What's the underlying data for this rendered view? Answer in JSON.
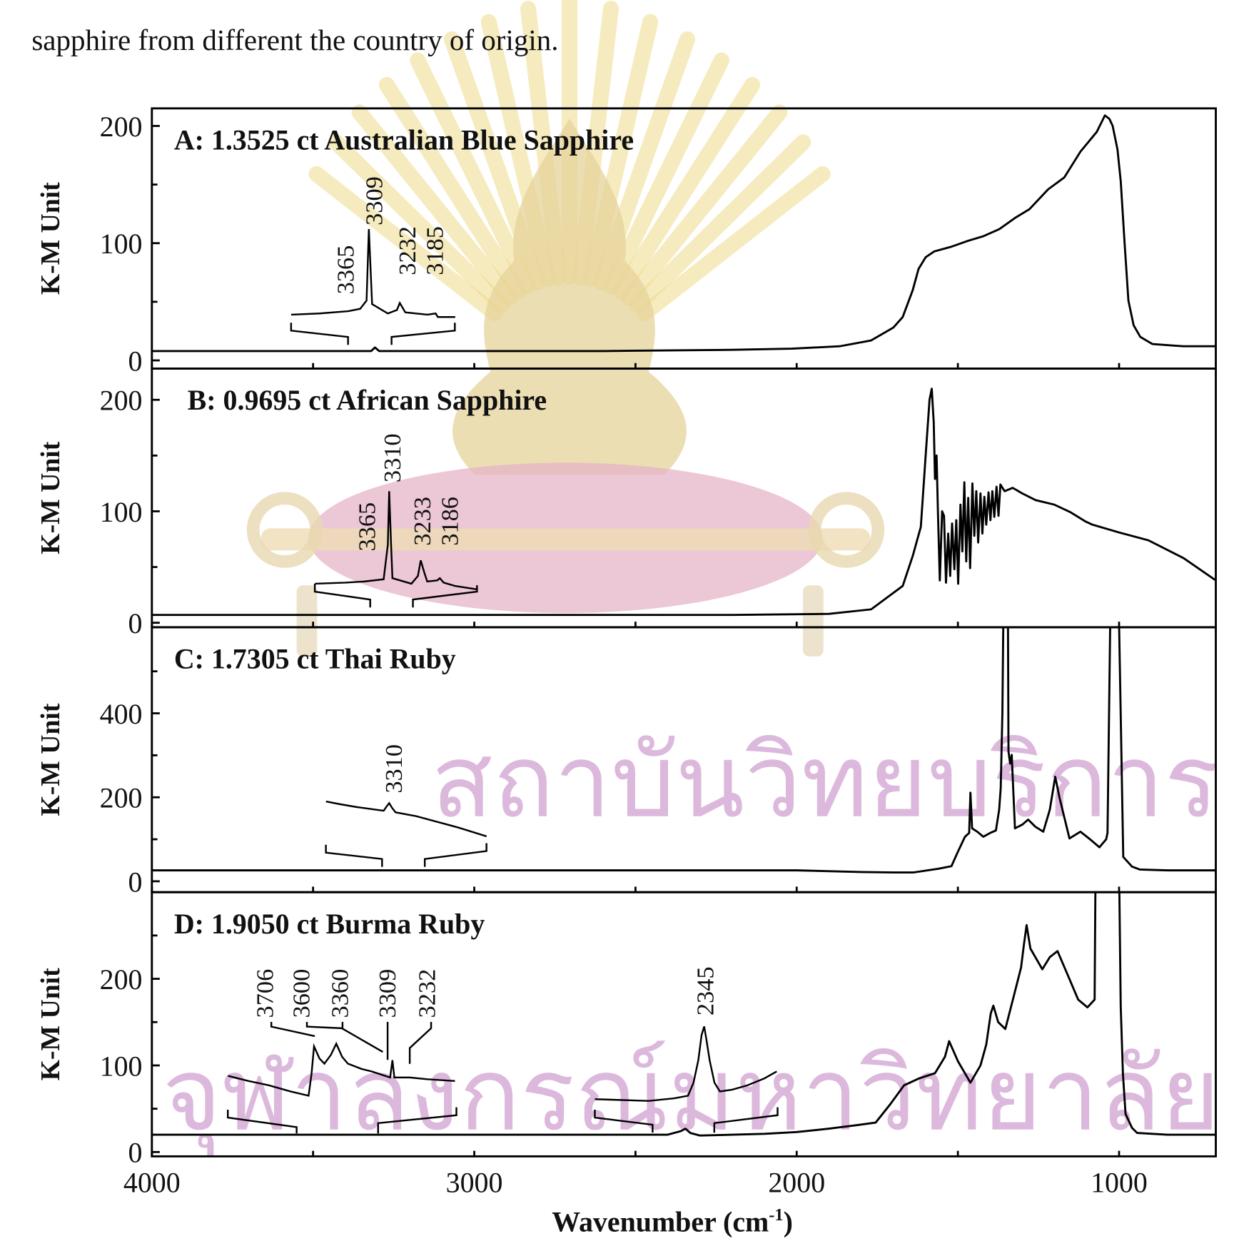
{
  "caption": "sapphire from different the country of origin.",
  "watermark": {
    "line1": "สถาบันวิทยบริการ",
    "line2": "จุฬาลงกรณ์มหาวิทยาลัย",
    "emblem_color": "#f0dc8c",
    "ribbon_color": "#e6b4c8",
    "text_color": "#d9b2d9"
  },
  "chart_data": {
    "type": "line",
    "xlabel": "Wavenumber (cm-1)",
    "xlabel_main": "Wavenumber (cm",
    "xlabel_sup": "-1",
    "xlabel_close": ")",
    "xlim": [
      4000,
      700
    ],
    "xticks": [
      4000,
      3000,
      2000,
      1000
    ],
    "xticks_minor": [
      3500,
      2500,
      1500
    ],
    "grid": false,
    "panels": [
      {
        "title": "A: 1.3525 ct Australian Blue Sapphire",
        "ylabel": "K-M Unit",
        "ylim": [
          -7,
          215
        ],
        "yticks": [
          0,
          100,
          200
        ],
        "yticks_minor": [
          50,
          150
        ],
        "annotations": [
          "3365",
          "3309",
          "3232",
          "3185"
        ],
        "series": [
          [
            4000,
            8
          ],
          [
            3400,
            8
          ],
          [
            3320,
            8
          ],
          [
            3308,
            11
          ],
          [
            3295,
            8
          ],
          [
            2600,
            8
          ],
          [
            2200,
            9
          ],
          [
            2015,
            10
          ],
          [
            1867,
            12
          ],
          [
            1769,
            17
          ],
          [
            1700,
            28
          ],
          [
            1671,
            37
          ],
          [
            1640,
            60
          ],
          [
            1622,
            78
          ],
          [
            1600,
            88
          ],
          [
            1573,
            93
          ],
          [
            1520,
            97
          ],
          [
            1469,
            102
          ],
          [
            1420,
            106
          ],
          [
            1371,
            112
          ],
          [
            1320,
            122
          ],
          [
            1278,
            129
          ],
          [
            1220,
            146
          ],
          [
            1170,
            156
          ],
          [
            1120,
            178
          ],
          [
            1069,
            195
          ],
          [
            1044,
            209
          ],
          [
            1030,
            206
          ],
          [
            1020,
            200
          ],
          [
            1005,
            180
          ],
          [
            995,
            153
          ],
          [
            983,
            100
          ],
          [
            971,
            51
          ],
          [
            955,
            30
          ],
          [
            934,
            20
          ],
          [
            897,
            14
          ],
          [
            800,
            12
          ],
          [
            700,
            12
          ]
        ],
        "inset": [
          [
            3568,
            39
          ],
          [
            3480,
            40
          ],
          [
            3391,
            42
          ],
          [
            3354,
            44
          ],
          [
            3334,
            51
          ],
          [
            3327,
            112
          ],
          [
            3317,
            48
          ],
          [
            3268,
            40
          ],
          [
            3240,
            43
          ],
          [
            3231,
            49
          ],
          [
            3214,
            41
          ],
          [
            3145,
            39
          ],
          [
            3120,
            40
          ],
          [
            3113,
            37
          ],
          [
            3059,
            37
          ]
        ]
      },
      {
        "title": "B: 0.9695 ct African Sapphire",
        "ylabel": "K-M Unit",
        "ylim": [
          -4,
          228
        ],
        "yticks": [
          0,
          100,
          200
        ],
        "yticks_minor": [
          50,
          150
        ],
        "annotations": [
          "3365",
          "3310",
          "3233",
          "3186"
        ],
        "series": [
          [
            4000,
            7
          ],
          [
            3000,
            7
          ],
          [
            2200,
            7
          ],
          [
            1900,
            8
          ],
          [
            1769,
            12
          ],
          [
            1671,
            33
          ],
          [
            1640,
            60
          ],
          [
            1615,
            86
          ],
          [
            1600,
            150
          ],
          [
            1588,
            200
          ],
          [
            1581,
            210
          ],
          [
            1575,
            180
          ],
          [
            1571,
            129
          ],
          [
            1566,
            150
          ],
          [
            1562,
            100
          ],
          [
            1556,
            38
          ],
          [
            1549,
            100
          ],
          [
            1543,
            96
          ],
          [
            1537,
            36
          ],
          [
            1530,
            80
          ],
          [
            1524,
            42
          ],
          [
            1518,
            89
          ],
          [
            1511,
            48
          ],
          [
            1505,
            92
          ],
          [
            1499,
            35
          ],
          [
            1492,
            106
          ],
          [
            1486,
            64
          ],
          [
            1480,
            126
          ],
          [
            1474,
            55
          ],
          [
            1468,
            112
          ],
          [
            1462,
            49
          ],
          [
            1455,
            125
          ],
          [
            1449,
            78
          ],
          [
            1443,
            118
          ],
          [
            1437,
            72
          ],
          [
            1430,
            116
          ],
          [
            1424,
            80
          ],
          [
            1418,
            113
          ],
          [
            1412,
            88
          ],
          [
            1405,
            117
          ],
          [
            1399,
            92
          ],
          [
            1393,
            118
          ],
          [
            1387,
            95
          ],
          [
            1380,
            122
          ],
          [
            1374,
            96
          ],
          [
            1368,
            124
          ],
          [
            1355,
            118
          ],
          [
            1330,
            121
          ],
          [
            1300,
            116
          ],
          [
            1259,
            110
          ],
          [
            1201,
            106
          ],
          [
            1150,
            99
          ],
          [
            1105,
            91
          ],
          [
            1083,
            88
          ],
          [
            1000,
            81
          ],
          [
            909,
            74
          ],
          [
            800,
            58
          ],
          [
            695,
            37
          ]
        ],
        "inset": [
          [
            3494,
            35
          ],
          [
            3400,
            36
          ],
          [
            3342,
            37
          ],
          [
            3281,
            39
          ],
          [
            3268,
            70
          ],
          [
            3264,
            118
          ],
          [
            3258,
            70
          ],
          [
            3254,
            40
          ],
          [
            3195,
            35
          ],
          [
            3175,
            42
          ],
          [
            3166,
            56
          ],
          [
            3155,
            45
          ],
          [
            3146,
            37
          ],
          [
            3115,
            38
          ],
          [
            3107,
            40
          ],
          [
            3095,
            36
          ],
          [
            3060,
            33
          ],
          [
            2992,
            30
          ]
        ]
      },
      {
        "title": "C: 1.7305 ct Thai Ruby",
        "ylabel": "K-M Unit",
        "ylim": [
          -26,
          605
        ],
        "yticks": [
          0,
          200,
          400
        ],
        "yticks_minor": [
          100,
          300,
          500
        ],
        "annotations": [
          "3310"
        ],
        "series": [
          [
            4000,
            26
          ],
          [
            3000,
            26
          ],
          [
            2000,
            26
          ],
          [
            1800,
            22
          ],
          [
            1700,
            21
          ],
          [
            1637,
            21
          ],
          [
            1560,
            30
          ],
          [
            1520,
            36
          ],
          [
            1500,
            70
          ],
          [
            1478,
            106
          ],
          [
            1465,
            115
          ],
          [
            1461,
            211
          ],
          [
            1456,
            126
          ],
          [
            1440,
            118
          ],
          [
            1421,
            106
          ],
          [
            1400,
            115
          ],
          [
            1382,
            121
          ],
          [
            1372,
            170
          ],
          [
            1367,
            222
          ],
          [
            1362,
            400
          ],
          [
            1358,
            700
          ],
          [
            1345,
            700
          ],
          [
            1343,
            309
          ],
          [
            1338,
            280
          ],
          [
            1333,
            301
          ],
          [
            1323,
            126
          ],
          [
            1300,
            135
          ],
          [
            1282,
            147
          ],
          [
            1260,
            130
          ],
          [
            1235,
            118
          ],
          [
            1215,
            170
          ],
          [
            1198,
            249
          ],
          [
            1185,
            200
          ],
          [
            1154,
            102
          ],
          [
            1120,
            118
          ],
          [
            1090,
            100
          ],
          [
            1061,
            81
          ],
          [
            1040,
            100
          ],
          [
            1036,
            115
          ],
          [
            1026,
            700
          ],
          [
            1002,
            700
          ],
          [
            987,
            58
          ],
          [
            960,
            35
          ],
          [
            936,
            28
          ],
          [
            850,
            26
          ],
          [
            700,
            26
          ]
        ],
        "inset": [
          [
            3460,
            190
          ],
          [
            3420,
            184
          ],
          [
            3367,
            177
          ],
          [
            3320,
            172
          ],
          [
            3281,
            168
          ],
          [
            3272,
            178
          ],
          [
            3264,
            186
          ],
          [
            3255,
            175
          ],
          [
            3244,
            164
          ],
          [
            3180,
            155
          ],
          [
            3122,
            143
          ],
          [
            3050,
            128
          ],
          [
            2962,
            107
          ]
        ]
      },
      {
        "title": "D: 1.9050 ct Burma Ruby",
        "ylabel": "K-M Unit",
        "ylim": [
          -5,
          300
        ],
        "yticks": [
          0,
          100,
          200
        ],
        "yticks_minor": [
          50,
          150,
          250
        ],
        "annotations": [
          "3706",
          "3600",
          "3360",
          "3309",
          "3232",
          "2345"
        ],
        "series": [
          [
            4000,
            20
          ],
          [
            3000,
            20
          ],
          [
            2400,
            20
          ],
          [
            2360,
            24
          ],
          [
            2345,
            27
          ],
          [
            2330,
            22
          ],
          [
            2300,
            19
          ],
          [
            2100,
            21
          ],
          [
            2000,
            23
          ],
          [
            1900,
            27
          ],
          [
            1814,
            31
          ],
          [
            1755,
            34
          ],
          [
            1710,
            55
          ],
          [
            1667,
            77
          ],
          [
            1620,
            85
          ],
          [
            1571,
            91
          ],
          [
            1540,
            110
          ],
          [
            1527,
            128
          ],
          [
            1500,
            105
          ],
          [
            1461,
            80
          ],
          [
            1430,
            100
          ],
          [
            1412,
            124
          ],
          [
            1398,
            160
          ],
          [
            1390,
            169
          ],
          [
            1375,
            150
          ],
          [
            1353,
            142
          ],
          [
            1330,
            175
          ],
          [
            1304,
            213
          ],
          [
            1295,
            240
          ],
          [
            1287,
            262
          ],
          [
            1275,
            235
          ],
          [
            1238,
            211
          ],
          [
            1215,
            225
          ],
          [
            1191,
            232
          ],
          [
            1160,
            205
          ],
          [
            1127,
            176
          ],
          [
            1098,
            167
          ],
          [
            1076,
            176
          ],
          [
            1073,
            330
          ],
          [
            1000,
            330
          ],
          [
            995,
            168
          ],
          [
            988,
            90
          ],
          [
            980,
            44
          ],
          [
            960,
            28
          ],
          [
            944,
            22
          ],
          [
            850,
            20
          ],
          [
            700,
            20
          ]
        ],
        "inset": [
          [
            3764,
            88
          ],
          [
            3700,
            82
          ],
          [
            3637,
            77
          ],
          [
            3570,
            70
          ],
          [
            3514,
            65
          ],
          [
            3505,
            90
          ],
          [
            3497,
            122
          ],
          [
            3480,
            108
          ],
          [
            3465,
            102
          ],
          [
            3445,
            112
          ],
          [
            3428,
            125
          ],
          [
            3410,
            110
          ],
          [
            3392,
            102
          ],
          [
            3350,
            96
          ],
          [
            3318,
            93
          ],
          [
            3261,
            86
          ],
          [
            3254,
            106
          ],
          [
            3248,
            86
          ],
          [
            3200,
            86
          ],
          [
            3146,
            84
          ],
          [
            3060,
            82
          ]
        ],
        "inset2": [
          [
            2626,
            61
          ],
          [
            2540,
            60
          ],
          [
            2459,
            59
          ],
          [
            2380,
            62
          ],
          [
            2337,
            65
          ],
          [
            2320,
            80
          ],
          [
            2305,
            106
          ],
          [
            2295,
            135
          ],
          [
            2287,
            145
          ],
          [
            2280,
            130
          ],
          [
            2270,
            106
          ],
          [
            2255,
            80
          ],
          [
            2238,
            70
          ],
          [
            2200,
            72
          ],
          [
            2153,
            77
          ],
          [
            2100,
            85
          ],
          [
            2062,
            93
          ]
        ]
      }
    ]
  }
}
